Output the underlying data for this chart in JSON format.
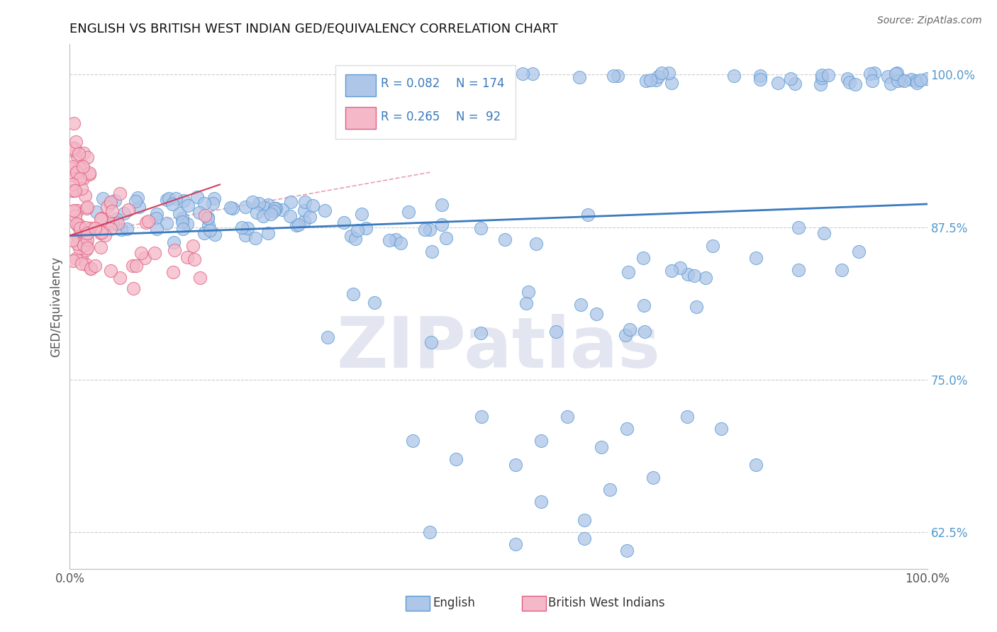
{
  "title": "ENGLISH VS BRITISH WEST INDIAN GED/EQUIVALENCY CORRELATION CHART",
  "source": "Source: ZipAtlas.com",
  "ylabel": "GED/Equivalency",
  "xlim": [
    0.0,
    1.0
  ],
  "ylim": [
    0.595,
    1.025
  ],
  "yticks": [
    0.625,
    0.75,
    0.875,
    1.0
  ],
  "ytick_labels": [
    "62.5%",
    "75.0%",
    "87.5%",
    "100.0%"
  ],
  "xtick_labels": [
    "0.0%",
    "100.0%"
  ],
  "english_color": "#aec6e8",
  "english_edge_color": "#5b9bd5",
  "bwi_color": "#f4b8c8",
  "bwi_edge_color": "#e06080",
  "english_line_color": "#3a7abf",
  "bwi_line_color": "#d04060",
  "ref_line_color": "#e8a0b0",
  "grid_color": "#cccccc",
  "watermark_color": "#e0e4f0",
  "title_color": "#111111",
  "source_color": "#666666",
  "legend_r_english": "R = 0.082",
  "legend_n_english": "N = 174",
  "legend_r_bwi": "R = 0.265",
  "legend_n_bwi": "N =  92",
  "eng_line_x": [
    0.0,
    1.0
  ],
  "eng_line_y": [
    0.868,
    0.894
  ],
  "bwi_line_x": [
    0.0,
    0.175
  ],
  "bwi_line_y": [
    0.868,
    0.91
  ],
  "ref_line_x": [
    0.02,
    0.42
  ],
  "ref_line_y": [
    0.87,
    0.92
  ]
}
